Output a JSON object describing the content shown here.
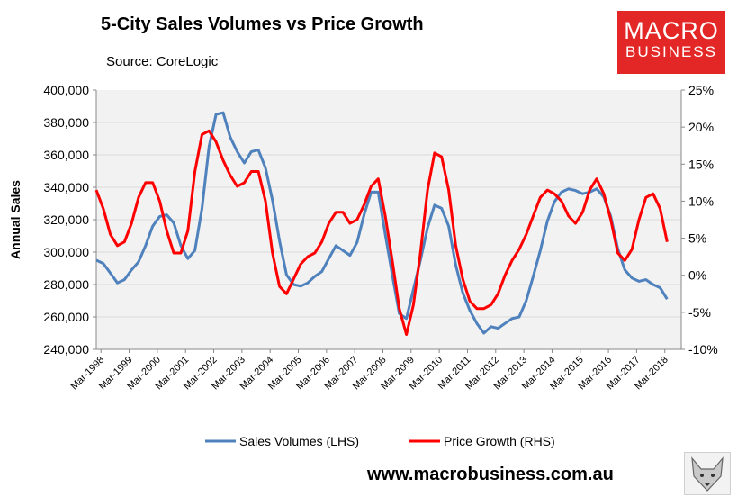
{
  "title": "5-City Sales Volumes vs Price Growth",
  "source": "Source: CoreLogic",
  "logo": {
    "line1": "MACRO",
    "line2": "BUSINESS"
  },
  "website": "www.macrobusiness.com.au",
  "colors": {
    "sales": "#4f81bd",
    "price": "#ff0000",
    "plot_bg": "#f2f2f2",
    "logo_bg": "#e32726"
  },
  "chart_data": {
    "type": "line",
    "title": "5-City Sales Volumes vs Price Growth",
    "ylabel": "Annual Sales",
    "y2label": "",
    "ylim": [
      240000,
      400000
    ],
    "y2lim": [
      -10,
      25
    ],
    "xlim": [
      1998.0,
      2018.75
    ],
    "yticks": [
      "400,000",
      "380,000",
      "360,000",
      "340,000",
      "320,000",
      "300,000",
      "280,000",
      "260,000",
      "240,000"
    ],
    "y2ticks": [
      "25%",
      "20%",
      "15%",
      "10%",
      "5%",
      "0%",
      "-5%",
      "-10%"
    ],
    "xticks": [
      "Mar-1998",
      "Mar-1999",
      "Mar-2000",
      "Mar-2001",
      "Mar-2002",
      "Mar-2003",
      "Mar-2004",
      "Mar-2005",
      "Mar-2006",
      "Mar-2007",
      "Mar-2008",
      "Mar-2009",
      "Mar-2010",
      "Mar-2011",
      "Mar-2012",
      "Mar-2013",
      "Mar-2014",
      "Mar-2015",
      "Mar-2016",
      "Mar-2017",
      "Mar-2018"
    ],
    "legend_position": "bottom",
    "series": [
      {
        "name": "Sales Volumes (LHS)",
        "axis": "left",
        "x": [
          1998.0,
          1998.25,
          1998.5,
          1998.75,
          1999.0,
          1999.25,
          1999.5,
          1999.75,
          2000.0,
          2000.25,
          2000.5,
          2000.75,
          2001.0,
          2001.25,
          2001.5,
          2001.75,
          2002.0,
          2002.25,
          2002.5,
          2002.75,
          2003.0,
          2003.25,
          2003.5,
          2003.75,
          2004.0,
          2004.25,
          2004.5,
          2004.75,
          2005.0,
          2005.25,
          2005.5,
          2005.75,
          2006.0,
          2006.25,
          2006.5,
          2006.75,
          2007.0,
          2007.25,
          2007.5,
          2007.75,
          2008.0,
          2008.25,
          2008.5,
          2008.75,
          2009.0,
          2009.25,
          2009.5,
          2009.75,
          2010.0,
          2010.25,
          2010.5,
          2010.75,
          2011.0,
          2011.25,
          2011.5,
          2011.75,
          2012.0,
          2012.25,
          2012.5,
          2012.75,
          2013.0,
          2013.25,
          2013.5,
          2013.75,
          2014.0,
          2014.25,
          2014.5,
          2014.75,
          2015.0,
          2015.25,
          2015.5,
          2015.75,
          2016.0,
          2016.25,
          2016.5,
          2016.75,
          2017.0,
          2017.25,
          2017.5,
          2017.75,
          2018.0,
          2018.25
        ],
        "values": [
          295000,
          293000,
          287000,
          281000,
          283000,
          289000,
          294000,
          304000,
          316000,
          322000,
          323000,
          318000,
          304000,
          296000,
          301000,
          327000,
          365000,
          385000,
          386000,
          371000,
          362000,
          355000,
          362000,
          363000,
          352000,
          332000,
          307000,
          286000,
          280000,
          279000,
          281000,
          285000,
          288000,
          296000,
          304000,
          301000,
          298000,
          306000,
          323000,
          337000,
          337000,
          311000,
          286000,
          262000,
          259000,
          277000,
          295000,
          315000,
          329000,
          327000,
          316000,
          292000,
          275000,
          264000,
          256000,
          250000,
          254000,
          253000,
          256000,
          259000,
          260000,
          270000,
          285000,
          301000,
          319000,
          331000,
          337000,
          339000,
          338000,
          336000,
          337000,
          339000,
          334000,
          322000,
          302000,
          289000,
          284000,
          282000,
          283000,
          280000,
          278000,
          271000
        ]
      },
      {
        "name": "Price Growth (RHS)",
        "axis": "right",
        "x": [
          1998.0,
          1998.25,
          1998.5,
          1998.75,
          1999.0,
          1999.25,
          1999.5,
          1999.75,
          2000.0,
          2000.25,
          2000.5,
          2000.75,
          2001.0,
          2001.25,
          2001.5,
          2001.75,
          2002.0,
          2002.25,
          2002.5,
          2002.75,
          2003.0,
          2003.25,
          2003.5,
          2003.75,
          2004.0,
          2004.25,
          2004.5,
          2004.75,
          2005.0,
          2005.25,
          2005.5,
          2005.75,
          2006.0,
          2006.25,
          2006.5,
          2006.75,
          2007.0,
          2007.25,
          2007.5,
          2007.75,
          2008.0,
          2008.25,
          2008.5,
          2008.75,
          2009.0,
          2009.25,
          2009.5,
          2009.75,
          2010.0,
          2010.25,
          2010.5,
          2010.75,
          2011.0,
          2011.25,
          2011.5,
          2011.75,
          2012.0,
          2012.25,
          2012.5,
          2012.75,
          2013.0,
          2013.25,
          2013.5,
          2013.75,
          2014.0,
          2014.25,
          2014.5,
          2014.75,
          2015.0,
          2015.25,
          2015.5,
          2015.75,
          2016.0,
          2016.25,
          2016.5,
          2016.75,
          2017.0,
          2017.25,
          2017.5,
          2017.75,
          2018.0,
          2018.25
        ],
        "values": [
          11.5,
          9.0,
          5.5,
          4.0,
          4.5,
          7.0,
          10.5,
          12.5,
          12.5,
          10.0,
          6.0,
          3.0,
          3.0,
          6.0,
          14.0,
          19.0,
          19.5,
          18.0,
          15.5,
          13.5,
          12.0,
          12.5,
          14.0,
          14.0,
          10.0,
          3.0,
          -1.5,
          -2.5,
          -0.5,
          1.5,
          2.5,
          3.0,
          4.5,
          7.0,
          8.5,
          8.5,
          7.0,
          7.5,
          9.5,
          12.0,
          13.0,
          8.0,
          2.0,
          -4.5,
          -8.0,
          -4.0,
          3.0,
          11.5,
          16.5,
          16.0,
          11.5,
          4.0,
          -0.5,
          -3.5,
          -4.5,
          -4.5,
          -4.0,
          -2.5,
          0.0,
          2.0,
          3.5,
          5.5,
          8.0,
          10.5,
          11.5,
          11.0,
          10.0,
          8.0,
          7.0,
          8.5,
          11.5,
          13.0,
          11.0,
          7.5,
          3.0,
          2.0,
          3.5,
          7.5,
          10.5,
          11.0,
          9.0,
          4.5
        ]
      }
    ]
  }
}
